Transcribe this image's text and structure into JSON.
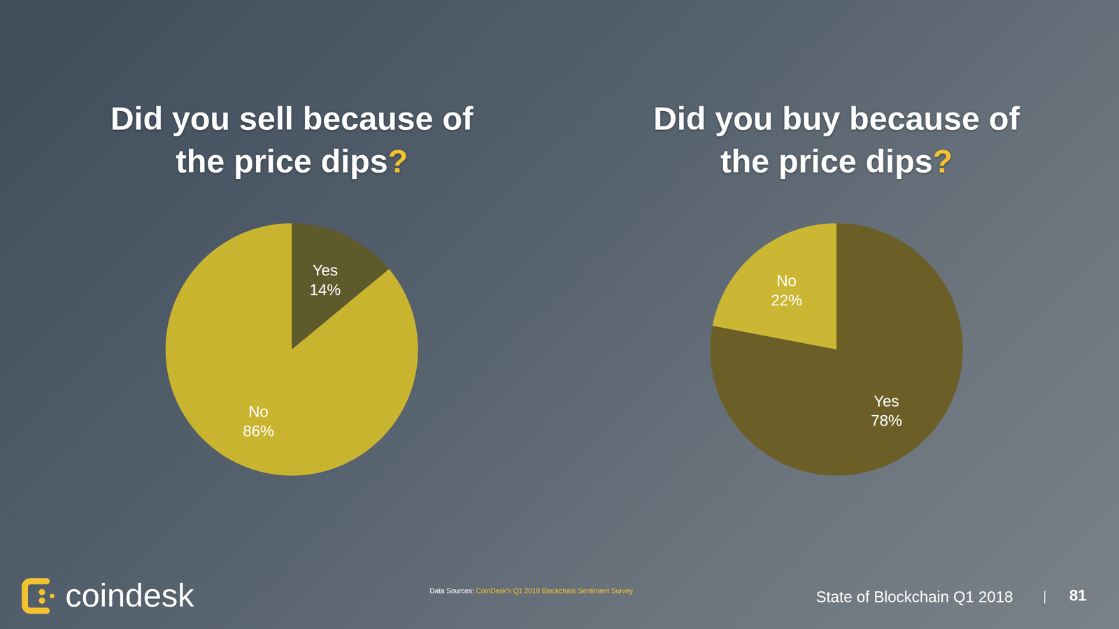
{
  "chart_data": [
    {
      "type": "pie",
      "title": "Did you sell because of the price dips?",
      "categories": [
        "Yes",
        "No"
      ],
      "values": [
        14,
        86
      ],
      "value_labels": [
        "14%",
        "86%"
      ],
      "colors": [
        "#5f5a2c",
        "#c9b42f"
      ],
      "data_labels": true
    },
    {
      "type": "pie",
      "title": "Did you buy because of the price dips?",
      "categories": [
        "Yes",
        "No"
      ],
      "values": [
        78,
        22
      ],
      "value_labels": [
        "78%",
        "22%"
      ],
      "colors": [
        "#6b5f27",
        "#cbb733"
      ],
      "data_labels": true
    }
  ],
  "footer": {
    "brand": "coindesk",
    "source_prefix": "Data Sources:",
    "source": "CoinDesk's Q1 2018 Blockchain Sentiment Survey",
    "report": "State of Blockchain Q1 2018",
    "page": "81"
  }
}
